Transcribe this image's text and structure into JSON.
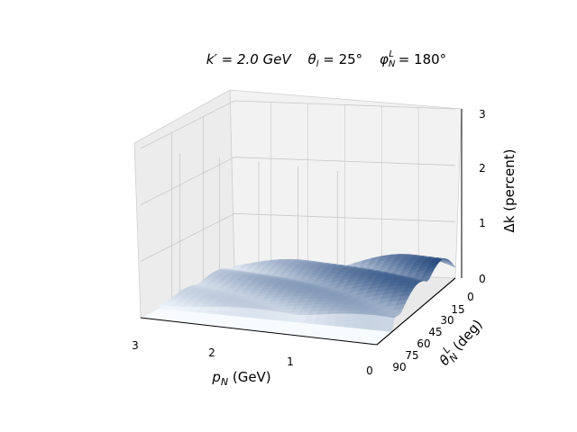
{
  "chart_data": {
    "type": "surface3d",
    "title": "k′ = 2.0 GeV   θl = 25°   φNL = 180°",
    "title_parts": {
      "k_label": "k′ = 2.0 GeV",
      "theta_label": "θ",
      "theta_sub": "l",
      "theta_value": " = 25°",
      "phi_label": "φ",
      "phi_sub": "N",
      "phi_sup": "L",
      "phi_value": " = 180°"
    },
    "xlabel": "p",
    "xlabel_sub": "N",
    "xlabel_unit": " (GeV)",
    "ylabel": "θ",
    "ylabel_sub": "N",
    "ylabel_sup": "L",
    "ylabel_unit": " (deg)",
    "zlabel": "Δk (percent)",
    "x_ticks": [
      "3",
      "2",
      "1",
      "0"
    ],
    "y_ticks": [
      "0",
      "15",
      "30",
      "45",
      "60",
      "75",
      "90"
    ],
    "z_ticks": [
      "0",
      "1",
      "2",
      "3"
    ],
    "xlim": [
      0,
      3
    ],
    "ylim": [
      0,
      90
    ],
    "zlim": [
      0,
      3
    ],
    "colormap": "Blues",
    "colors": {
      "pane": "#f2f2f2",
      "grid": "#c8c8c8",
      "low": "#f7fbff",
      "high": "#08306b"
    }
  }
}
